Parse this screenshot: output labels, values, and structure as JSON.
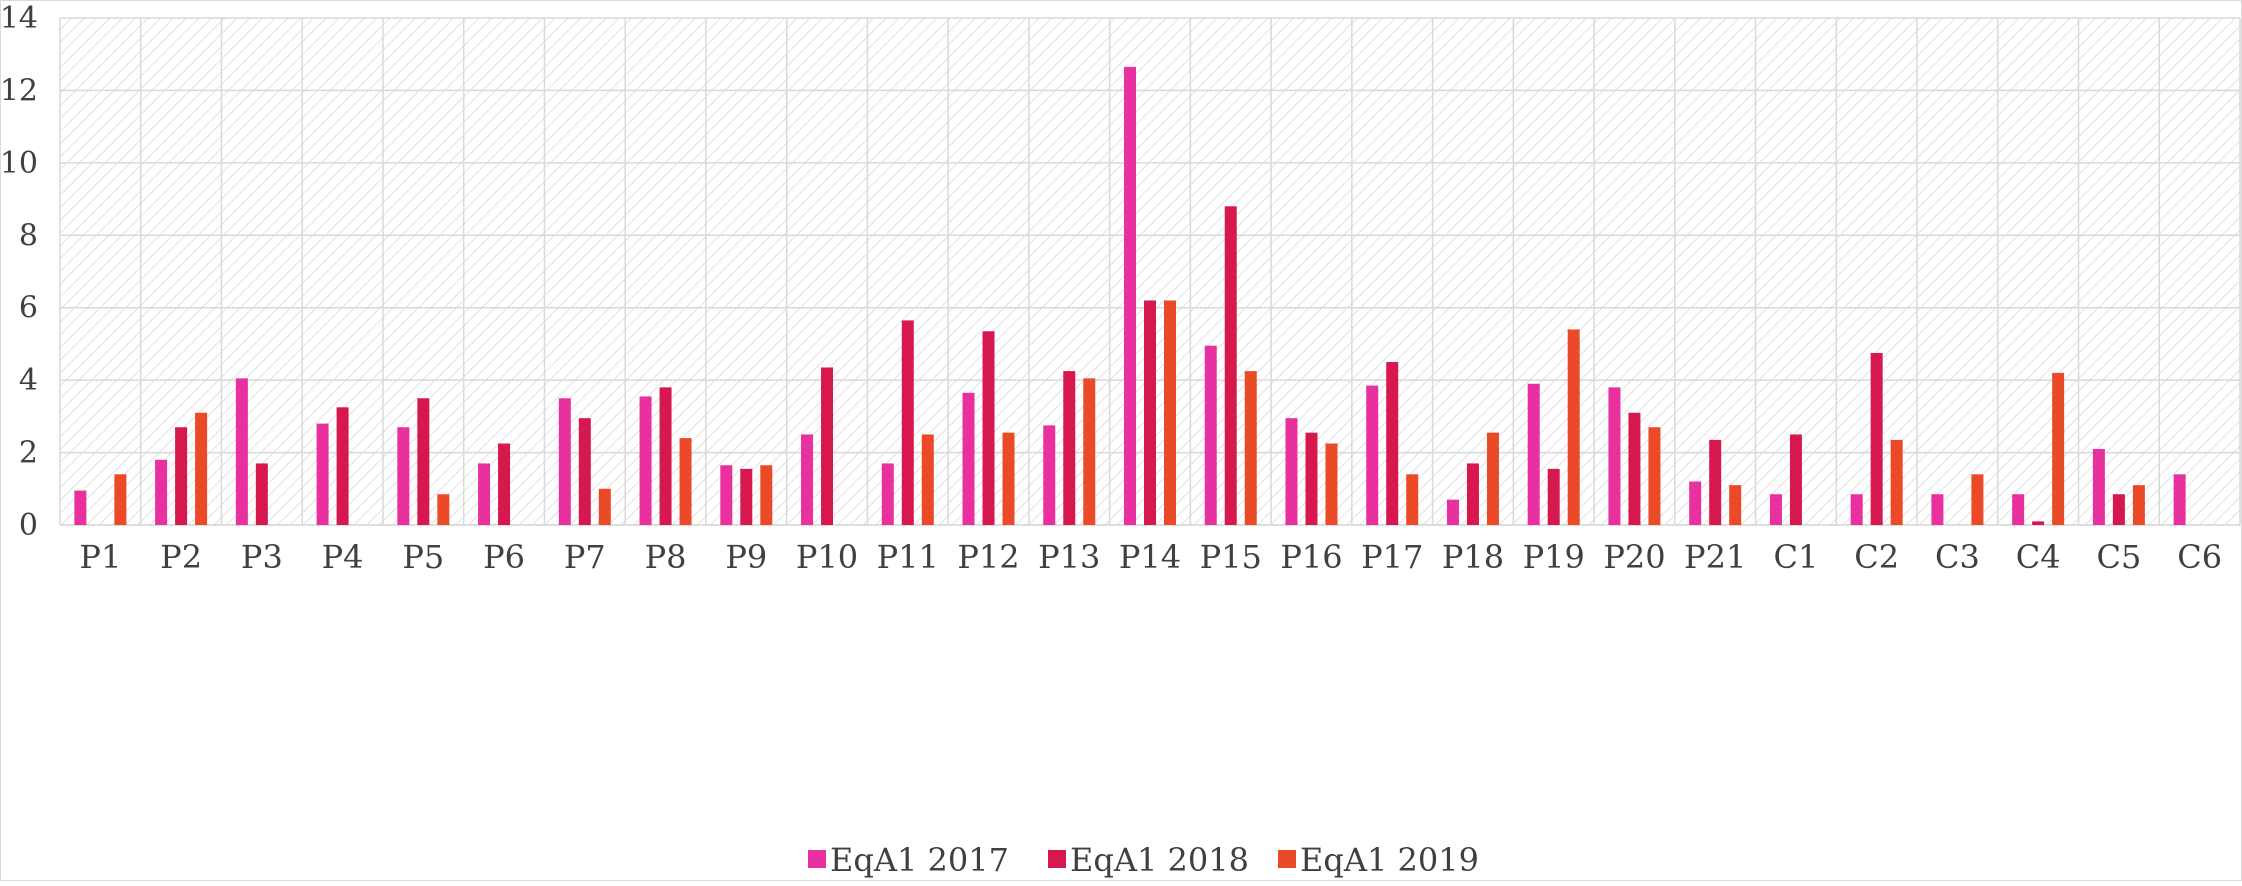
{
  "chart_data": {
    "type": "bar",
    "categories": [
      "P1",
      "P2",
      "P3",
      "P4",
      "P5",
      "P6",
      "P7",
      "P8",
      "P9",
      "P10",
      "P11",
      "P12",
      "P13",
      "P14",
      "P15",
      "P16",
      "P17",
      "P18",
      "P19",
      "P20",
      "P21",
      "C1",
      "C2",
      "C3",
      "C4",
      "C5",
      "C6"
    ],
    "series": [
      {
        "name": "EqA1 2017",
        "color": "#e8309e",
        "values": [
          0.95,
          1.8,
          4.05,
          2.8,
          2.7,
          1.7,
          3.5,
          3.55,
          1.65,
          2.5,
          1.7,
          3.65,
          2.75,
          12.65,
          4.95,
          2.95,
          3.85,
          0.7,
          3.9,
          3.8,
          1.2,
          0.85,
          0.85,
          0.85,
          0.85,
          2.1,
          1.4
        ]
      },
      {
        "name": "EqA1 2018",
        "color": "#d6184f",
        "values": [
          0,
          2.7,
          1.7,
          3.25,
          3.5,
          2.25,
          2.95,
          3.8,
          1.55,
          4.35,
          5.65,
          5.35,
          4.25,
          6.2,
          8.8,
          2.55,
          4.5,
          1.7,
          1.55,
          3.1,
          2.35,
          2.5,
          4.75,
          0,
          0.1,
          0.85,
          0
        ]
      },
      {
        "name": "EqA1 2019",
        "color": "#ea4a28",
        "values": [
          1.4,
          3.1,
          0,
          0,
          0.85,
          0,
          1.0,
          2.4,
          1.65,
          0,
          2.5,
          2.55,
          4.05,
          6.2,
          4.25,
          2.25,
          1.4,
          2.55,
          5.4,
          2.7,
          1.1,
          0,
          2.35,
          1.4,
          4.2,
          1.1,
          0
        ]
      }
    ],
    "yticks": [
      "0",
      "2",
      "4",
      "6",
      "8",
      "10",
      "12",
      "14"
    ],
    "ylim": [
      0,
      14
    ],
    "grid": true,
    "legend_position": "bottom"
  }
}
